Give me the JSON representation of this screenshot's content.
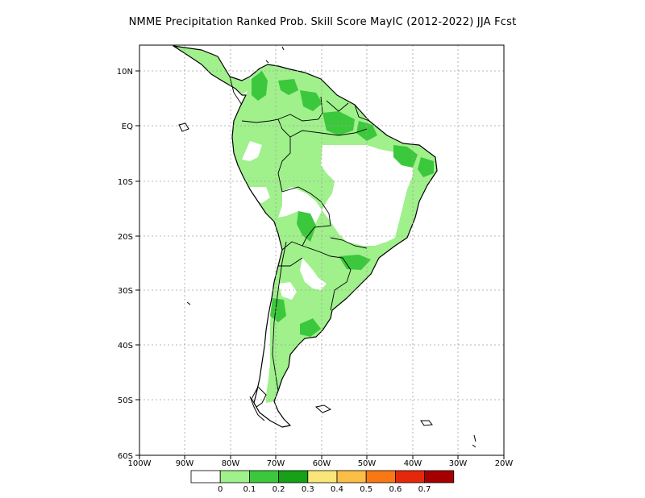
{
  "title": "NMME  Precipitation Ranked Prob. Skill Score MayIC (2012-2022) JJA Fcst",
  "map": {
    "lon_labels": [
      "100W",
      "90W",
      "80W",
      "70W",
      "60W",
      "50W",
      "40W",
      "30W",
      "20W"
    ],
    "lat_labels": [
      "10N",
      "EQ",
      "10S",
      "20S",
      "30S",
      "40S",
      "50S",
      "60S"
    ]
  },
  "colorbar": {
    "colors": [
      "#ffffff",
      "#a0f08c",
      "#3cc83c",
      "#16a016",
      "#fae678",
      "#fabe46",
      "#fa7814",
      "#e6280a",
      "#a50000"
    ],
    "labels": [
      "0",
      "0.1",
      "0.2",
      "0.3",
      "0.4",
      "0.5",
      "0.6",
      "0.7"
    ]
  }
}
